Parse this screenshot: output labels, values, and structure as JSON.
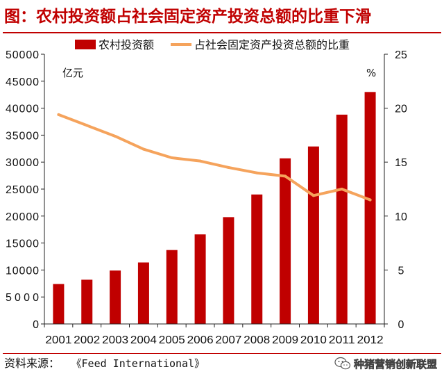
{
  "page": {
    "title": "图：农村投资额占社会固定资产投资总额的比重下滑",
    "source_label": "资料来源：",
    "source_ref": "《Feed International》",
    "watermark": "种猪营销创新联盟",
    "watermark_icon": "wechat-icon"
  },
  "colors": {
    "title": "#c00000",
    "bar": "#c00000",
    "line": "#f5a35c",
    "axis": "#222222"
  },
  "chart_data": {
    "type": "bar",
    "title": "农村投资额占社会固定资产投资总额的比重下滑",
    "categories": [
      "2001",
      "2002",
      "2003",
      "2004",
      "2005",
      "2006",
      "2007",
      "2008",
      "2009",
      "2010",
      "2011",
      "2012"
    ],
    "series": [
      {
        "name": "农村投资额",
        "type": "bar",
        "axis": "left",
        "unit": "亿元",
        "values": [
          7400,
          8200,
          9900,
          11400,
          13700,
          16600,
          19800,
          24000,
          30700,
          32900,
          38800,
          43000
        ]
      },
      {
        "name": "占社会固定资产投资总额的比重",
        "type": "line",
        "axis": "right",
        "unit": "%",
        "values": [
          19.4,
          18.4,
          17.4,
          16.2,
          15.4,
          15.1,
          14.5,
          14.0,
          13.7,
          11.9,
          12.5,
          11.5
        ]
      }
    ],
    "y_left": {
      "label": "亿元",
      "ylim": [
        0,
        50000
      ],
      "ticks": [
        "0",
        "5000",
        "10000",
        "15000",
        "20000",
        "25000",
        "30000",
        "35000",
        "40000",
        "45000",
        "50000"
      ]
    },
    "y_right": {
      "label": "%",
      "ylim": [
        0,
        25
      ],
      "ticks": [
        "0",
        "5",
        "10",
        "15",
        "20",
        "25"
      ]
    },
    "legend": {
      "position": "top",
      "entries": [
        "农村投资额",
        "占社会固定资产投资总额的比重"
      ]
    },
    "grid": false
  }
}
